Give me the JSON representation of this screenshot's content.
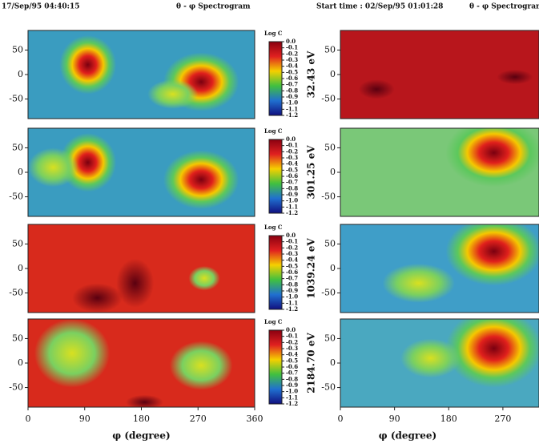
{
  "header": {
    "left_date": "17/Sep/95 04:40:15",
    "left_title": "θ - φ Spectrogram",
    "right_start": "Start time : 02/Sep/95 01:01:28",
    "right_title": "θ - φ Spectrogram"
  },
  "chart_data": [
    {
      "type": "heatmap",
      "xlim": [
        0,
        360
      ],
      "ylim": [
        -90,
        90
      ],
      "yticks": [
        50,
        0,
        -50
      ],
      "colorbar": {
        "title": "Log C",
        "ticks": [
          {
            "value": 0,
            "label": "0.0"
          },
          -0.1,
          -0.2,
          -0.3,
          -0.4,
          -0.5,
          -0.6,
          -0.7,
          -0.8,
          -0.9,
          {
            "value": -1,
            "label": "-1.0"
          },
          -1.1,
          -1.2
        ]
      }
    },
    {
      "type": "heatmap",
      "xlim": [
        0,
        360
      ],
      "ylim": [
        -90,
        90
      ],
      "yticks": [
        50,
        0,
        -50
      ],
      "colorbar": {
        "title": "Log C",
        "ticks": [
          {
            "value": 0,
            "label": "0.0"
          },
          -0.1,
          -0.2,
          -0.3,
          -0.4,
          -0.5,
          -0.6,
          -0.7,
          -0.8,
          -0.9,
          {
            "value": -1,
            "label": "-1.0"
          },
          -1.1,
          -1.2
        ]
      }
    },
    {
      "type": "heatmap",
      "xlim": [
        0,
        360
      ],
      "ylim": [
        -90,
        90
      ],
      "yticks": [
        50,
        0,
        -50
      ],
      "colorbar": {
        "title": "Log C",
        "ticks": [
          {
            "value": 0,
            "label": "0.0"
          },
          -0.1,
          -0.2,
          -0.3,
          -0.4,
          -0.5,
          -0.6,
          -0.7,
          -0.8,
          -0.9,
          {
            "value": -1,
            "label": "-1.0"
          },
          -1.1,
          -1.2
        ]
      }
    },
    {
      "type": "heatmap",
      "xlim": [
        0,
        360
      ],
      "ylim": [
        -90,
        90
      ],
      "yticks": [
        50,
        0,
        -50
      ],
      "xticks": [
        0,
        90,
        180,
        270,
        360
      ],
      "xlabel": "φ (degree)",
      "colorbar": {
        "title": "Log C",
        "ticks": [
          {
            "value": 0,
            "label": "0.0"
          },
          -0.1,
          -0.2,
          -0.3,
          -0.4,
          -0.5,
          -0.6,
          -0.7,
          -0.8,
          -0.9,
          {
            "value": -1,
            "label": "-1.0"
          },
          -1.1,
          -1.2
        ]
      }
    },
    {
      "type": "heatmap",
      "ylabel": "32.43 eV",
      "xlim": [
        0,
        330
      ],
      "ylim": [
        -90,
        90
      ],
      "yticks": [
        50,
        0,
        -50
      ]
    },
    {
      "type": "heatmap",
      "ylabel": "301.25 eV",
      "xlim": [
        0,
        330
      ],
      "ylim": [
        -90,
        90
      ],
      "yticks": [
        50,
        0,
        -50
      ]
    },
    {
      "type": "heatmap",
      "ylabel": "1039.24 eV",
      "xlim": [
        0,
        330
      ],
      "ylim": [
        -90,
        90
      ],
      "yticks": [
        50,
        0,
        -50
      ]
    },
    {
      "type": "heatmap",
      "ylabel": "2184.70 eV",
      "xlim": [
        0,
        330
      ],
      "ylim": [
        -90,
        90
      ],
      "yticks": [
        50,
        0,
        -50
      ],
      "xticks": [
        0,
        90,
        180,
        270
      ],
      "xlabel": "φ (degree)"
    }
  ]
}
